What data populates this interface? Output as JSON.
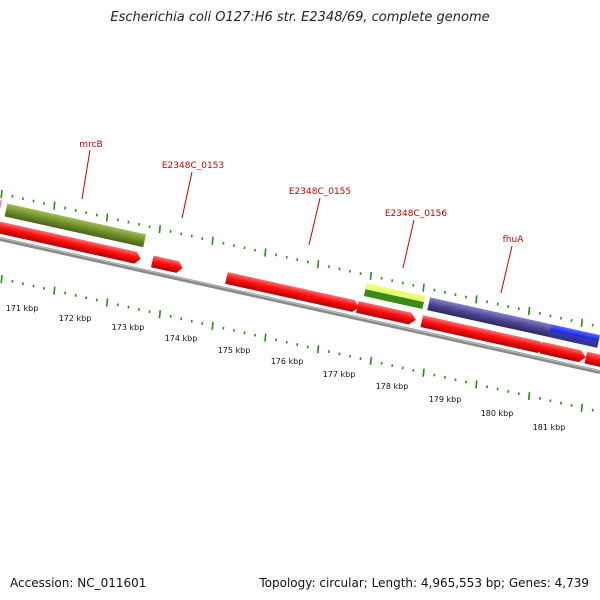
{
  "title": "Escherichia coli O127:H6 str. E2348/69, complete genome",
  "footer": {
    "accession": "Accession: NC_011601",
    "topology": "Topology: circular; Length: 4,965,553 bp; Genes: 4,739"
  },
  "gene_labels": {
    "mrcB": "mrcB",
    "c0153": "E2348C_0153",
    "c0155": "E2348C_0155",
    "c0156": "E2348C_0156",
    "fhuA": "fhuA"
  },
  "scale_labels": [
    "171 kbp",
    "172 kbp",
    "173 kbp",
    "174 kbp",
    "175 kbp",
    "176 kbp",
    "177 kbp",
    "178 kbp",
    "179 kbp",
    "180 kbp",
    "181 kbp"
  ],
  "colors": {
    "label_red": "#cc0000",
    "arrow_red": "#ff1010",
    "olive": "#6f8f2a",
    "lime": "#a6e030",
    "slate": "#4b4690",
    "blue": "#1020e0",
    "magenta": "#ff40c0",
    "tick_green": "#2a8a1a",
    "backbone": "#8a8a8a"
  }
}
